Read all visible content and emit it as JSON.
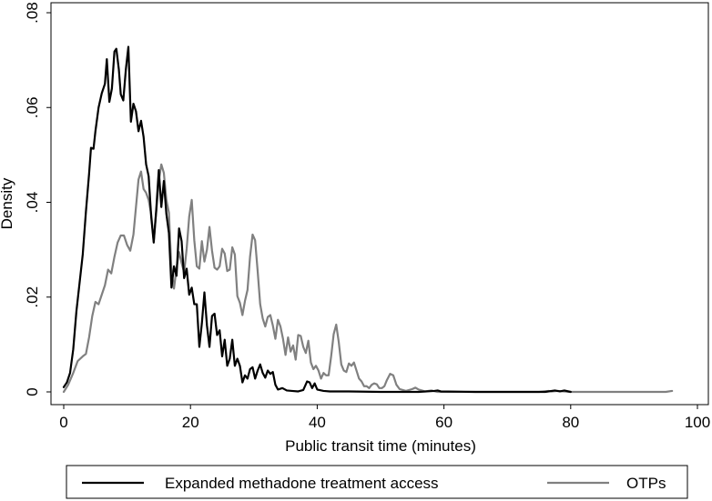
{
  "chart_data": {
    "type": "line",
    "xlabel": "Public transit time (minutes)",
    "ylabel": "Density",
    "xlim": [
      0,
      100
    ],
    "ylim": [
      0,
      0.08
    ],
    "x_ticks": [
      0,
      20,
      40,
      60,
      80,
      100
    ],
    "x_tick_labels": [
      "0",
      "20",
      "40",
      "60",
      "80",
      "100"
    ],
    "y_ticks": [
      0,
      0.02,
      0.04,
      0.06,
      0.08
    ],
    "y_tick_labels": [
      "0",
      ".02",
      ".04",
      ".06",
      ".08"
    ],
    "grid": false,
    "legend_position": "bottom",
    "series": [
      {
        "name": "Expanded methadone treatment access",
        "color": "#000000",
        "points": [
          [
            0,
            0.001
          ],
          [
            0.5,
            0.002
          ],
          [
            1,
            0.004
          ],
          [
            1.5,
            0.009
          ],
          [
            2,
            0.017
          ],
          [
            2.5,
            0.023
          ],
          [
            3,
            0.029
          ],
          [
            3.5,
            0.038
          ],
          [
            4,
            0.046
          ],
          [
            4.3,
            0.0515
          ],
          [
            4.7,
            0.0513
          ],
          [
            5,
            0.055
          ],
          [
            5.5,
            0.06
          ],
          [
            6,
            0.063
          ],
          [
            6.5,
            0.065
          ],
          [
            6.8,
            0.0702
          ],
          [
            7.2,
            0.0612
          ],
          [
            7.6,
            0.064
          ],
          [
            8,
            0.0718
          ],
          [
            8.3,
            0.0724
          ],
          [
            8.7,
            0.068
          ],
          [
            9,
            0.0628
          ],
          [
            9.4,
            0.0615
          ],
          [
            9.8,
            0.068
          ],
          [
            10.2,
            0.0728
          ],
          [
            10.6,
            0.057
          ],
          [
            11,
            0.0608
          ],
          [
            11.4,
            0.0592
          ],
          [
            11.8,
            0.055
          ],
          [
            12.2,
            0.0572
          ],
          [
            12.6,
            0.0538
          ],
          [
            13,
            0.048
          ],
          [
            13.4,
            0.0455
          ],
          [
            13.8,
            0.037
          ],
          [
            14.2,
            0.0315
          ],
          [
            14.6,
            0.0385
          ],
          [
            15,
            0.0468
          ],
          [
            15.4,
            0.039
          ],
          [
            15.8,
            0.0445
          ],
          [
            16.2,
            0.0375
          ],
          [
            16.6,
            0.0335
          ],
          [
            17,
            0.022
          ],
          [
            17.4,
            0.0265
          ],
          [
            17.8,
            0.0245
          ],
          [
            18.2,
            0.0345
          ],
          [
            18.6,
            0.0318
          ],
          [
            19,
            0.024
          ],
          [
            19.4,
            0.026
          ],
          [
            19.8,
            0.0205
          ],
          [
            20.2,
            0.022
          ],
          [
            20.6,
            0.0185
          ],
          [
            21,
            0.0185
          ],
          [
            21.4,
            0.0095
          ],
          [
            21.8,
            0.0145
          ],
          [
            22.2,
            0.021
          ],
          [
            22.6,
            0.014
          ],
          [
            23,
            0.0095
          ],
          [
            23.4,
            0.016
          ],
          [
            23.8,
            0.0165
          ],
          [
            24.2,
            0.012
          ],
          [
            24.6,
            0.013
          ],
          [
            25,
            0.0075
          ],
          [
            25.4,
            0.011
          ],
          [
            25.8,
            0.0055
          ],
          [
            26.2,
            0.007
          ],
          [
            26.6,
            0.011
          ],
          [
            27,
            0.0055
          ],
          [
            27.4,
            0.007
          ],
          [
            27.8,
            0.0055
          ],
          [
            28.2,
            0.002
          ],
          [
            28.6,
            0.0035
          ],
          [
            29,
            0.0028
          ],
          [
            29.4,
            0.0048
          ],
          [
            29.8,
            0.0052
          ],
          [
            30.2,
            0.0028
          ],
          [
            30.6,
            0.0045
          ],
          [
            31,
            0.0058
          ],
          [
            31.4,
            0.004
          ],
          [
            31.8,
            0.003
          ],
          [
            32.2,
            0.0045
          ],
          [
            32.6,
            0.0038
          ],
          [
            33,
            0.0042
          ],
          [
            33.4,
            0.0015
          ],
          [
            33.8,
            0.0005
          ],
          [
            34.5,
            0.0008
          ],
          [
            35.2,
            0.0003
          ],
          [
            36,
            0.0002
          ],
          [
            37,
            0.0001
          ],
          [
            37.8,
            0.0004
          ],
          [
            38.4,
            0.0022
          ],
          [
            38.8,
            0.002
          ],
          [
            39.2,
            0.0008
          ],
          [
            39.6,
            0.0018
          ],
          [
            40,
            0.0005
          ],
          [
            41,
            0.0002
          ],
          [
            42,
            0.0001
          ],
          [
            45,
            0.0001
          ],
          [
            50,
            0.0
          ],
          [
            56,
            0.0
          ],
          [
            58.5,
            0.0002
          ],
          [
            59,
            0.0003
          ],
          [
            59.5,
            0.0001
          ],
          [
            65,
            0.0
          ],
          [
            76,
            0.0
          ],
          [
            77.5,
            0.0003
          ],
          [
            78.3,
            0.0001
          ],
          [
            79,
            0.0003
          ],
          [
            80,
            0.0
          ]
        ]
      },
      {
        "name": "OTPs",
        "color": "#808080",
        "points": [
          [
            0,
            0.0
          ],
          [
            0.7,
            0.0015
          ],
          [
            1.5,
            0.004
          ],
          [
            2.2,
            0.0065
          ],
          [
            3,
            0.0075
          ],
          [
            3.5,
            0.008
          ],
          [
            4,
            0.0115
          ],
          [
            4.5,
            0.016
          ],
          [
            5,
            0.019
          ],
          [
            5.5,
            0.0185
          ],
          [
            6,
            0.0205
          ],
          [
            6.5,
            0.0225
          ],
          [
            7,
            0.0258
          ],
          [
            7.5,
            0.025
          ],
          [
            8,
            0.0285
          ],
          [
            8.5,
            0.0315
          ],
          [
            9,
            0.033
          ],
          [
            9.5,
            0.033
          ],
          [
            10,
            0.031
          ],
          [
            10.5,
            0.0298
          ],
          [
            11,
            0.0332
          ],
          [
            11.4,
            0.039
          ],
          [
            11.8,
            0.0448
          ],
          [
            12.2,
            0.0465
          ],
          [
            12.6,
            0.0428
          ],
          [
            13,
            0.042
          ],
          [
            13.4,
            0.0405
          ],
          [
            13.8,
            0.0375
          ],
          [
            14.2,
            0.0318
          ],
          [
            14.6,
            0.038
          ],
          [
            15,
            0.0445
          ],
          [
            15.4,
            0.048
          ],
          [
            15.8,
            0.0462
          ],
          [
            16.2,
            0.0405
          ],
          [
            16.6,
            0.0378
          ],
          [
            17,
            0.0255
          ],
          [
            17.4,
            0.0218
          ],
          [
            17.8,
            0.0262
          ],
          [
            18.2,
            0.0295
          ],
          [
            18.6,
            0.0272
          ],
          [
            19,
            0.0252
          ],
          [
            19.4,
            0.0302
          ],
          [
            19.8,
            0.037
          ],
          [
            20.2,
            0.0405
          ],
          [
            20.6,
            0.032
          ],
          [
            21,
            0.0265
          ],
          [
            21.4,
            0.026
          ],
          [
            21.8,
            0.0318
          ],
          [
            22.2,
            0.0275
          ],
          [
            22.6,
            0.03
          ],
          [
            23,
            0.0348
          ],
          [
            23.4,
            0.0298
          ],
          [
            23.8,
            0.0262
          ],
          [
            24.2,
            0.0258
          ],
          [
            24.6,
            0.0265
          ],
          [
            25,
            0.0302
          ],
          [
            25.4,
            0.0292
          ],
          [
            25.8,
            0.0255
          ],
          [
            26.2,
            0.0258
          ],
          [
            26.6,
            0.0305
          ],
          [
            27,
            0.029
          ],
          [
            27.4,
            0.0202
          ],
          [
            27.8,
            0.0188
          ],
          [
            28.2,
            0.0162
          ],
          [
            28.6,
            0.0192
          ],
          [
            29,
            0.0215
          ],
          [
            29.4,
            0.0285
          ],
          [
            29.8,
            0.0332
          ],
          [
            30.2,
            0.032
          ],
          [
            30.6,
            0.0255
          ],
          [
            31,
            0.0185
          ],
          [
            31.4,
            0.0155
          ],
          [
            31.8,
            0.0138
          ],
          [
            32.2,
            0.0158
          ],
          [
            32.6,
            0.0162
          ],
          [
            33,
            0.014
          ],
          [
            33.4,
            0.0112
          ],
          [
            33.8,
            0.0152
          ],
          [
            34.2,
            0.0138
          ],
          [
            34.6,
            0.0112
          ],
          [
            35,
            0.0078
          ],
          [
            35.4,
            0.0115
          ],
          [
            35.8,
            0.0085
          ],
          [
            36.2,
            0.0098
          ],
          [
            36.6,
            0.0068
          ],
          [
            37,
            0.012
          ],
          [
            37.4,
            0.0118
          ],
          [
            37.8,
            0.0095
          ],
          [
            38.2,
            0.0082
          ],
          [
            38.6,
            0.0108
          ],
          [
            39,
            0.0062
          ],
          [
            39.4,
            0.0048
          ],
          [
            39.8,
            0.0055
          ],
          [
            40.2,
            0.0045
          ],
          [
            40.6,
            0.0028
          ],
          [
            41,
            0.004
          ],
          [
            41.4,
            0.0035
          ],
          [
            41.8,
            0.0035
          ],
          [
            42.2,
            0.0075
          ],
          [
            42.6,
            0.0122
          ],
          [
            43,
            0.0142
          ],
          [
            43.4,
            0.0105
          ],
          [
            43.8,
            0.0058
          ],
          [
            44.2,
            0.0045
          ],
          [
            44.6,
            0.0042
          ],
          [
            45,
            0.006
          ],
          [
            45.4,
            0.0055
          ],
          [
            45.8,
            0.0062
          ],
          [
            46.2,
            0.0045
          ],
          [
            46.6,
            0.0028
          ],
          [
            47,
            0.0022
          ],
          [
            47.4,
            0.0012
          ],
          [
            47.8,
            0.0012
          ],
          [
            48.2,
            0.0008
          ],
          [
            48.6,
            0.0015
          ],
          [
            49,
            0.0018
          ],
          [
            49.4,
            0.0016
          ],
          [
            49.8,
            0.0008
          ],
          [
            50.2,
            0.0008
          ],
          [
            50.6,
            0.0012
          ],
          [
            51,
            0.0025
          ],
          [
            51.5,
            0.0038
          ],
          [
            52,
            0.0035
          ],
          [
            52.5,
            0.0015
          ],
          [
            53,
            0.0006
          ],
          [
            54,
            0.0002
          ],
          [
            55,
            0.0006
          ],
          [
            55.5,
            0.0009
          ],
          [
            56,
            0.0005
          ],
          [
            57,
            0.0001
          ],
          [
            58,
            0.0003
          ],
          [
            59,
            0.0
          ],
          [
            62,
            0.0
          ],
          [
            75,
            0.0
          ],
          [
            76.5,
            0.0002
          ],
          [
            77,
            0.0001
          ],
          [
            78,
            0.0002
          ],
          [
            79,
            0.0001
          ],
          [
            80,
            0.0
          ],
          [
            95,
            0.0
          ],
          [
            96,
            0.0002
          ]
        ]
      }
    ]
  }
}
